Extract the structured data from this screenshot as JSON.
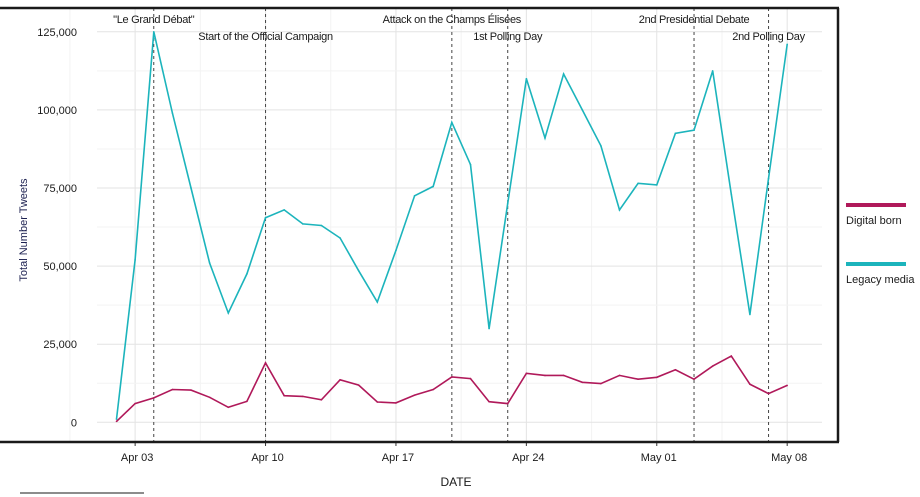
{
  "chart_data": {
    "type": "line",
    "xlabel": "DATE",
    "ylabel": "Total Number Tweets",
    "ylim": [
      0,
      130000
    ],
    "yticks": [
      0,
      25000,
      50000,
      75000,
      100000,
      125000
    ],
    "ytick_labels": [
      "0",
      "25,000",
      "50,000",
      "75,000",
      "100,000",
      "125,000"
    ],
    "xtick_labels": [
      "Apr 03",
      "Apr 10",
      "Apr 17",
      "Apr 24",
      "May 01",
      "May 08"
    ],
    "grid": true,
    "legend_position": "right",
    "start_date": "Apr 02",
    "x": [
      "Apr 02",
      "Apr 03",
      "Apr 04",
      "Apr 05",
      "Apr 06",
      "Apr 07",
      "Apr 08",
      "Apr 09",
      "Apr 10",
      "Apr 11",
      "Apr 12",
      "Apr 13",
      "Apr 14",
      "Apr 15",
      "Apr 16",
      "Apr 17",
      "Apr 18",
      "Apr 19",
      "Apr 20",
      "Apr 21",
      "Apr 22",
      "Apr 23",
      "Apr 24",
      "Apr 25",
      "Apr 26",
      "Apr 27",
      "Apr 28",
      "Apr 29",
      "Apr 30",
      "May 01",
      "May 02",
      "May 03",
      "May 04",
      "May 05",
      "May 06",
      "May 07",
      "May 08"
    ],
    "series": [
      {
        "name": "Digital born",
        "color": "#b0195a",
        "values": [
          300,
          6000,
          7800,
          10500,
          10300,
          8000,
          4800,
          6700,
          19000,
          8500,
          8300,
          7200,
          13600,
          11900,
          6500,
          6200,
          8700,
          10500,
          14500,
          14000,
          6600,
          6000,
          15700,
          15000,
          15000,
          12800,
          12400,
          15000,
          13800,
          14400,
          16800,
          13800,
          18000,
          21200,
          12200,
          9200,
          11800
        ]
      },
      {
        "name": "Legacy media",
        "color": "#1cb4bc",
        "values": [
          1000,
          52000,
          125000,
          99000,
          75000,
          51000,
          35000,
          47500,
          65500,
          68000,
          63500,
          63000,
          59000,
          48500,
          38500,
          55000,
          72500,
          75500,
          96000,
          82500,
          30000,
          70000,
          110000,
          91000,
          111500,
          100000,
          88500,
          68000,
          76500,
          76000,
          92500,
          93500,
          112500,
          73000,
          34500,
          78000,
          121000
        ]
      }
    ],
    "annotations": [
      {
        "date": "Apr 04",
        "label": "\"Le Grand Débat\"",
        "row": 1
      },
      {
        "date": "Apr 10",
        "label": "Start of the Official Campaign",
        "row": 2
      },
      {
        "date": "Apr 20",
        "label": "Attack on the Champs Élisées",
        "row": 1
      },
      {
        "date": "Apr 23",
        "label": "1st Polling Day",
        "row": 2
      },
      {
        "date": "May 03",
        "label": "2nd Presidential Debate",
        "row": 1
      },
      {
        "date": "May 07",
        "label": "2nd Polling Day",
        "row": 2
      }
    ]
  }
}
